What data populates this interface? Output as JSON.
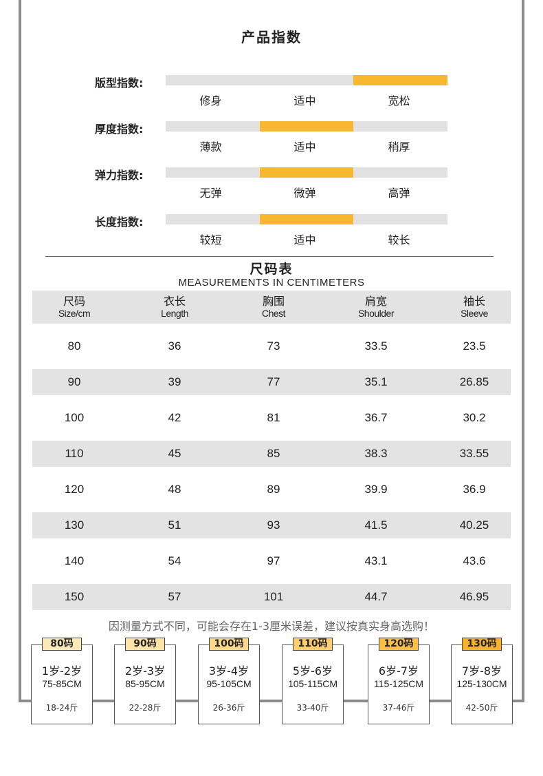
{
  "title": "产品指数",
  "indices": [
    {
      "label": "版型指数:",
      "options": [
        "修身",
        "适中",
        "宽松"
      ],
      "active": 2
    },
    {
      "label": "厚度指数:",
      "options": [
        "薄款",
        "适中",
        "稍厚"
      ],
      "active": 1
    },
    {
      "label": "弹力指数:",
      "options": [
        "无弹",
        "微弹",
        "高弹"
      ],
      "active": 1
    },
    {
      "label": "长度指数:",
      "options": [
        "较短",
        "适中",
        "较长"
      ],
      "active": 1
    }
  ],
  "size_chart": {
    "title": "尺码表",
    "subtitle": "MEASUREMENTS IN CENTIMETERS",
    "headers": [
      {
        "cn": "尺码",
        "en": "Size/cm"
      },
      {
        "cn": "衣长",
        "en": "Length"
      },
      {
        "cn": "胸围",
        "en": "Chest"
      },
      {
        "cn": "肩宽",
        "en": "Shoulder"
      },
      {
        "cn": "袖长",
        "en": "Sleeve"
      }
    ],
    "rows": [
      [
        "80",
        "36",
        "73",
        "33.5",
        "23.5"
      ],
      [
        "90",
        "39",
        "77",
        "35.1",
        "26.85"
      ],
      [
        "100",
        "42",
        "81",
        "36.7",
        "30.2"
      ],
      [
        "110",
        "45",
        "85",
        "38.3",
        "33.55"
      ],
      [
        "120",
        "48",
        "89",
        "39.9",
        "36.9"
      ],
      [
        "130",
        "51",
        "93",
        "41.5",
        "40.25"
      ],
      [
        "140",
        "54",
        "97",
        "43.1",
        "43.6"
      ],
      [
        "150",
        "57",
        "101",
        "44.7",
        "46.95"
      ]
    ]
  },
  "note": "因测量方式不同，可能会存在1-3厘米误差，建议按真实身高选购！",
  "size_cards": [
    {
      "tag": "80码",
      "age": "1岁-2岁",
      "height": "75-85CM",
      "weight": "18-24斤",
      "color": "#fde9b8"
    },
    {
      "tag": "90码",
      "age": "2岁-3岁",
      "height": "85-95CM",
      "weight": "22-28斤",
      "color": "#fde3a6"
    },
    {
      "tag": "100码",
      "age": "3岁-4岁",
      "height": "95-105CM",
      "weight": "26-36斤",
      "color": "#fdd98a"
    },
    {
      "tag": "110码",
      "age": "5岁-6岁",
      "height": "105-115CM",
      "weight": "33-40斤",
      "color": "#fcce6c"
    },
    {
      "tag": "120码",
      "age": "6岁-7岁",
      "height": "115-125CM",
      "weight": "37-46斤",
      "color": "#fbbf45"
    },
    {
      "tag": "130码",
      "age": "7岁-8岁",
      "height": "125-130CM",
      "weight": "42-50斤",
      "color": "#f9b02a"
    }
  ]
}
